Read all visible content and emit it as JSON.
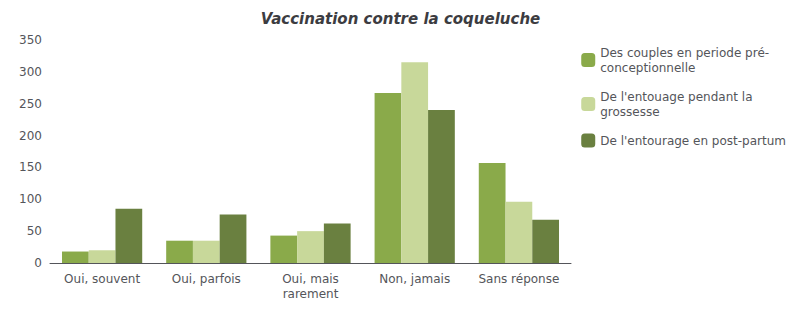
{
  "chart_data": {
    "type": "bar",
    "title": "Vaccination contre la coqueluche",
    "categories": [
      "Oui, souvent",
      "Oui, parfois",
      "Oui, mais\nrarement",
      "Non, jamais",
      "Sans réponse"
    ],
    "series": [
      {
        "name": "Des couples en periode pré-\nconceptionnelle",
        "color": "#8aaa4a",
        "values": [
          18,
          35,
          43,
          267,
          157
        ]
      },
      {
        "name": "De l'entouage pendant la\ngrossesse",
        "color": "#c8d89a",
        "values": [
          20,
          35,
          50,
          315,
          96
        ]
      },
      {
        "name": "De l'entourage en post-partum",
        "color": "#6a8040",
        "values": [
          85,
          76,
          62,
          240,
          68
        ]
      }
    ],
    "ylim": [
      0,
      350
    ],
    "yticks": [
      0,
      50,
      100,
      150,
      200,
      250,
      300,
      350
    ],
    "grid": false,
    "legend": "upper right"
  }
}
